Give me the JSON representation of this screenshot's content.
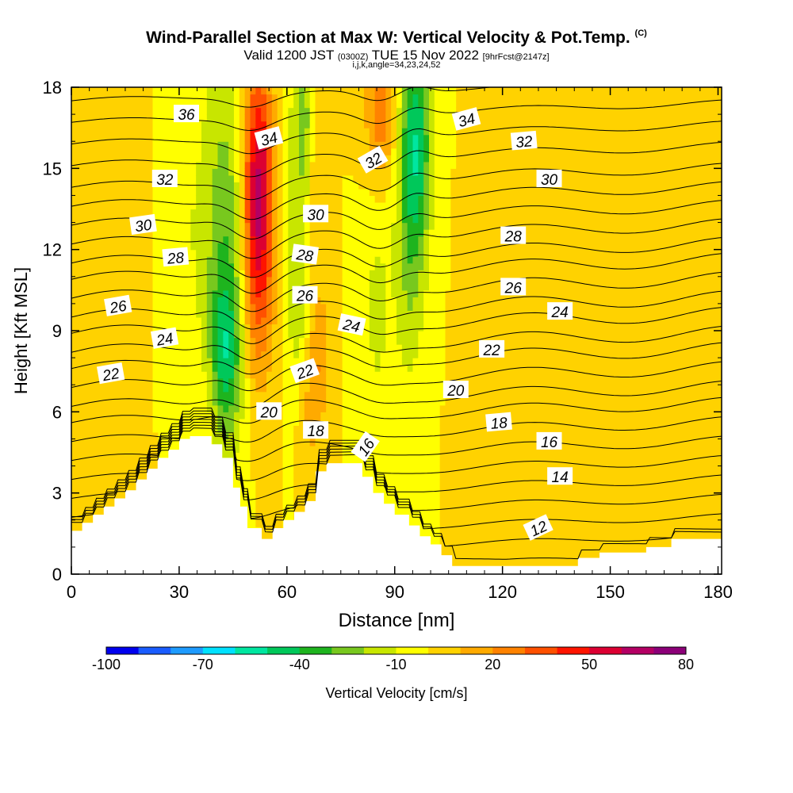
{
  "title": {
    "main": "Wind-Parallel Section at Max W: Vertical Velocity & Pot.Temp.",
    "copyright": "(C)",
    "valid_prefix": "Valid 1200 JST",
    "valid_utc": "(0300Z)",
    "valid_date": "TUE 15 Nov 2022",
    "forecast": "[9hrFcst@2147z]",
    "indices": "i,j,k,angle=34,23,24,52"
  },
  "chart_data": {
    "type": "heatmap",
    "xlabel": "Distance [nm]",
    "ylabel": "Height [Kft MSL]",
    "xlim": [
      0,
      181
    ],
    "ylim": [
      0,
      18
    ],
    "x_ticks": [
      0,
      30,
      60,
      90,
      120,
      150,
      180
    ],
    "y_ticks": [
      0,
      3,
      6,
      9,
      12,
      15,
      18
    ],
    "colorbar": {
      "label": "Vertical Velocity [cm/s]",
      "tick_labels": [
        "-100",
        "-70",
        "-40",
        "-10",
        "20",
        "50",
        "80"
      ],
      "tick_values": [
        -100,
        -70,
        -40,
        -10,
        20,
        50,
        80
      ],
      "range": [
        -100,
        80
      ],
      "step": 10,
      "colors": [
        "#0000ee",
        "#1a5cff",
        "#1e9bff",
        "#00e1ff",
        "#00e6a0",
        "#00c85a",
        "#1eb41e",
        "#78c81e",
        "#c8e600",
        "#ffff00",
        "#ffd200",
        "#ffaa00",
        "#ff8200",
        "#ff5000",
        "#ff1400",
        "#dc0032",
        "#b40064",
        "#8c0078"
      ]
    },
    "background_w": 0,
    "w_features": [
      {
        "x": 32,
        "z": 13,
        "sx": 5,
        "sz": 6,
        "w": -9
      },
      {
        "x": 43,
        "z": 12,
        "sx": 4,
        "sz": 5,
        "w": -28
      },
      {
        "x": 43,
        "z": 8,
        "sx": 3,
        "sz": 2,
        "w": -30
      },
      {
        "x": 52,
        "z": 15,
        "sx": 3,
        "sz": 3,
        "w": 50
      },
      {
        "x": 52,
        "z": 11,
        "sx": 3,
        "sz": 3,
        "w": 30
      },
      {
        "x": 63,
        "z": 14,
        "sx": 3,
        "sz": 4,
        "w": -12
      },
      {
        "x": 65,
        "z": 17,
        "sx": 2,
        "sz": 2,
        "w": -22
      },
      {
        "x": 63,
        "z": 10,
        "sx": 2,
        "sz": 2,
        "w": -12
      },
      {
        "x": 69,
        "z": 8,
        "sx": 2,
        "sz": 2,
        "w": 18
      },
      {
        "x": 68,
        "z": 16,
        "sx": 2,
        "sz": 3,
        "w": 15
      },
      {
        "x": 85,
        "z": 10,
        "sx": 3,
        "sz": 4,
        "w": -12
      },
      {
        "x": 86,
        "z": 17,
        "sx": 3,
        "sz": 2,
        "w": 28
      },
      {
        "x": 96,
        "z": 16,
        "sx": 3,
        "sz": 3,
        "w": -42
      },
      {
        "x": 94,
        "z": 12,
        "sx": 3,
        "sz": 4,
        "w": -18
      },
      {
        "x": 66,
        "z": 6,
        "sx": 2,
        "sz": 2,
        "w": 10
      },
      {
        "x": 10,
        "z": 14,
        "sx": 12,
        "sz": 8,
        "w": 3
      },
      {
        "x": 130,
        "z": 10,
        "sx": 10,
        "sz": 5,
        "w": 3
      },
      {
        "x": 128,
        "z": 3,
        "sx": 4,
        "sz": 2,
        "w": 8
      },
      {
        "x": 160,
        "z": 3,
        "sx": 3,
        "sz": 2,
        "w": 6
      },
      {
        "x": 168,
        "z": 7,
        "sx": 12,
        "sz": 4,
        "w": 3
      },
      {
        "x": 38,
        "z": 6,
        "sx": 3,
        "sz": 2,
        "w": 5
      }
    ],
    "terrain": [
      [
        0,
        1.6
      ],
      [
        3,
        1.6
      ],
      [
        3,
        1.9
      ],
      [
        6,
        1.9
      ],
      [
        6,
        2.2
      ],
      [
        9,
        2.2
      ],
      [
        9,
        2.5
      ],
      [
        12,
        2.5
      ],
      [
        12,
        2.8
      ],
      [
        15,
        2.8
      ],
      [
        15,
        3.1
      ],
      [
        18,
        3.1
      ],
      [
        18,
        3.5
      ],
      [
        21,
        3.5
      ],
      [
        21,
        3.9
      ],
      [
        24,
        3.9
      ],
      [
        24,
        4.3
      ],
      [
        27,
        4.3
      ],
      [
        27,
        4.6
      ],
      [
        30,
        4.6
      ],
      [
        30,
        5.0
      ],
      [
        33,
        5.0
      ],
      [
        33,
        5.1
      ],
      [
        39,
        5.1
      ],
      [
        39,
        4.8
      ],
      [
        42,
        4.8
      ],
      [
        42,
        4.3
      ],
      [
        45,
        4.3
      ],
      [
        45,
        3.2
      ],
      [
        47,
        3.2
      ],
      [
        47,
        2.5
      ],
      [
        49,
        2.5
      ],
      [
        49,
        1.7
      ],
      [
        53,
        1.7
      ],
      [
        53,
        1.3
      ],
      [
        56,
        1.3
      ],
      [
        56,
        1.7
      ],
      [
        59,
        1.7
      ],
      [
        59,
        2.0
      ],
      [
        62,
        2.0
      ],
      [
        62,
        2.3
      ],
      [
        65,
        2.3
      ],
      [
        65,
        2.7
      ],
      [
        68,
        2.7
      ],
      [
        68,
        3.8
      ],
      [
        71,
        3.8
      ],
      [
        71,
        4.1
      ],
      [
        81,
        4.1
      ],
      [
        81,
        3.6
      ],
      [
        84,
        3.6
      ],
      [
        84,
        3.0
      ],
      [
        87,
        3.0
      ],
      [
        87,
        2.6
      ],
      [
        90,
        2.6
      ],
      [
        90,
        2.2
      ],
      [
        94,
        2.2
      ],
      [
        94,
        1.8
      ],
      [
        97,
        1.8
      ],
      [
        97,
        1.4
      ],
      [
        100,
        1.4
      ],
      [
        100,
        1.1
      ],
      [
        103,
        1.1
      ],
      [
        103,
        0.7
      ],
      [
        106,
        0.7
      ],
      [
        106,
        0.3
      ],
      [
        141,
        0.3
      ],
      [
        141,
        0.6
      ],
      [
        147,
        0.6
      ],
      [
        147,
        0.8
      ],
      [
        160,
        0.8
      ],
      [
        160,
        1.0
      ],
      [
        167,
        1.0
      ],
      [
        167,
        1.3
      ],
      [
        181,
        1.3
      ]
    ],
    "theta_contours": {
      "min": 12,
      "max": 37,
      "step": 1,
      "base_z": [
        0,
        0.7,
        1.4,
        2.1,
        2.8,
        3.5,
        4.2,
        4.9,
        5.6,
        6.2,
        6.9,
        7.6,
        8.2,
        8.9,
        9.5,
        10.2,
        10.9,
        11.5,
        12.2,
        12.9,
        13.6,
        14.3,
        15.1,
        15.9,
        16.7,
        17.5
      ],
      "labels": [
        {
          "text": "36",
          "x": 32,
          "z": 17.0,
          "angle": 0
        },
        {
          "text": "34",
          "x": 55,
          "z": 16.1,
          "angle": -15
        },
        {
          "text": "34",
          "x": 110,
          "z": 16.8,
          "angle": -15
        },
        {
          "text": "32",
          "x": 26,
          "z": 14.6,
          "angle": 0
        },
        {
          "text": "32",
          "x": 84,
          "z": 15.3,
          "angle": -30
        },
        {
          "text": "32",
          "x": 126,
          "z": 16.0,
          "angle": -5
        },
        {
          "text": "30",
          "x": 20,
          "z": 12.9,
          "angle": -8
        },
        {
          "text": "30",
          "x": 68,
          "z": 13.3,
          "angle": 0
        },
        {
          "text": "30",
          "x": 133,
          "z": 14.6,
          "angle": 0
        },
        {
          "text": "28",
          "x": 29,
          "z": 11.7,
          "angle": -5
        },
        {
          "text": "28",
          "x": 65,
          "z": 11.8,
          "angle": 8
        },
        {
          "text": "28",
          "x": 123,
          "z": 12.5,
          "angle": 0
        },
        {
          "text": "26",
          "x": 13,
          "z": 9.9,
          "angle": -10
        },
        {
          "text": "26",
          "x": 65,
          "z": 10.3,
          "angle": 0
        },
        {
          "text": "26",
          "x": 123,
          "z": 10.6,
          "angle": 0
        },
        {
          "text": "24",
          "x": 26,
          "z": 8.7,
          "angle": -10
        },
        {
          "text": "24",
          "x": 78,
          "z": 9.2,
          "angle": 12
        },
        {
          "text": "24",
          "x": 136,
          "z": 9.7,
          "angle": 0
        },
        {
          "text": "22",
          "x": 11,
          "z": 7.4,
          "angle": -10
        },
        {
          "text": "22",
          "x": 65,
          "z": 7.5,
          "angle": -20
        },
        {
          "text": "22",
          "x": 117,
          "z": 8.3,
          "angle": 0
        },
        {
          "text": "20",
          "x": 55,
          "z": 6.0,
          "angle": 0
        },
        {
          "text": "20",
          "x": 107,
          "z": 6.8,
          "angle": 0
        },
        {
          "text": "18",
          "x": 68,
          "z": 5.3,
          "angle": 0
        },
        {
          "text": "18",
          "x": 119,
          "z": 5.6,
          "angle": -5
        },
        {
          "text": "16",
          "x": 82,
          "z": 4.7,
          "angle": -55
        },
        {
          "text": "16",
          "x": 133,
          "z": 4.9,
          "angle": 0
        },
        {
          "text": "14",
          "x": 136,
          "z": 3.6,
          "angle": 0
        },
        {
          "text": "12",
          "x": 130,
          "z": 1.7,
          "angle": -25
        }
      ]
    }
  }
}
